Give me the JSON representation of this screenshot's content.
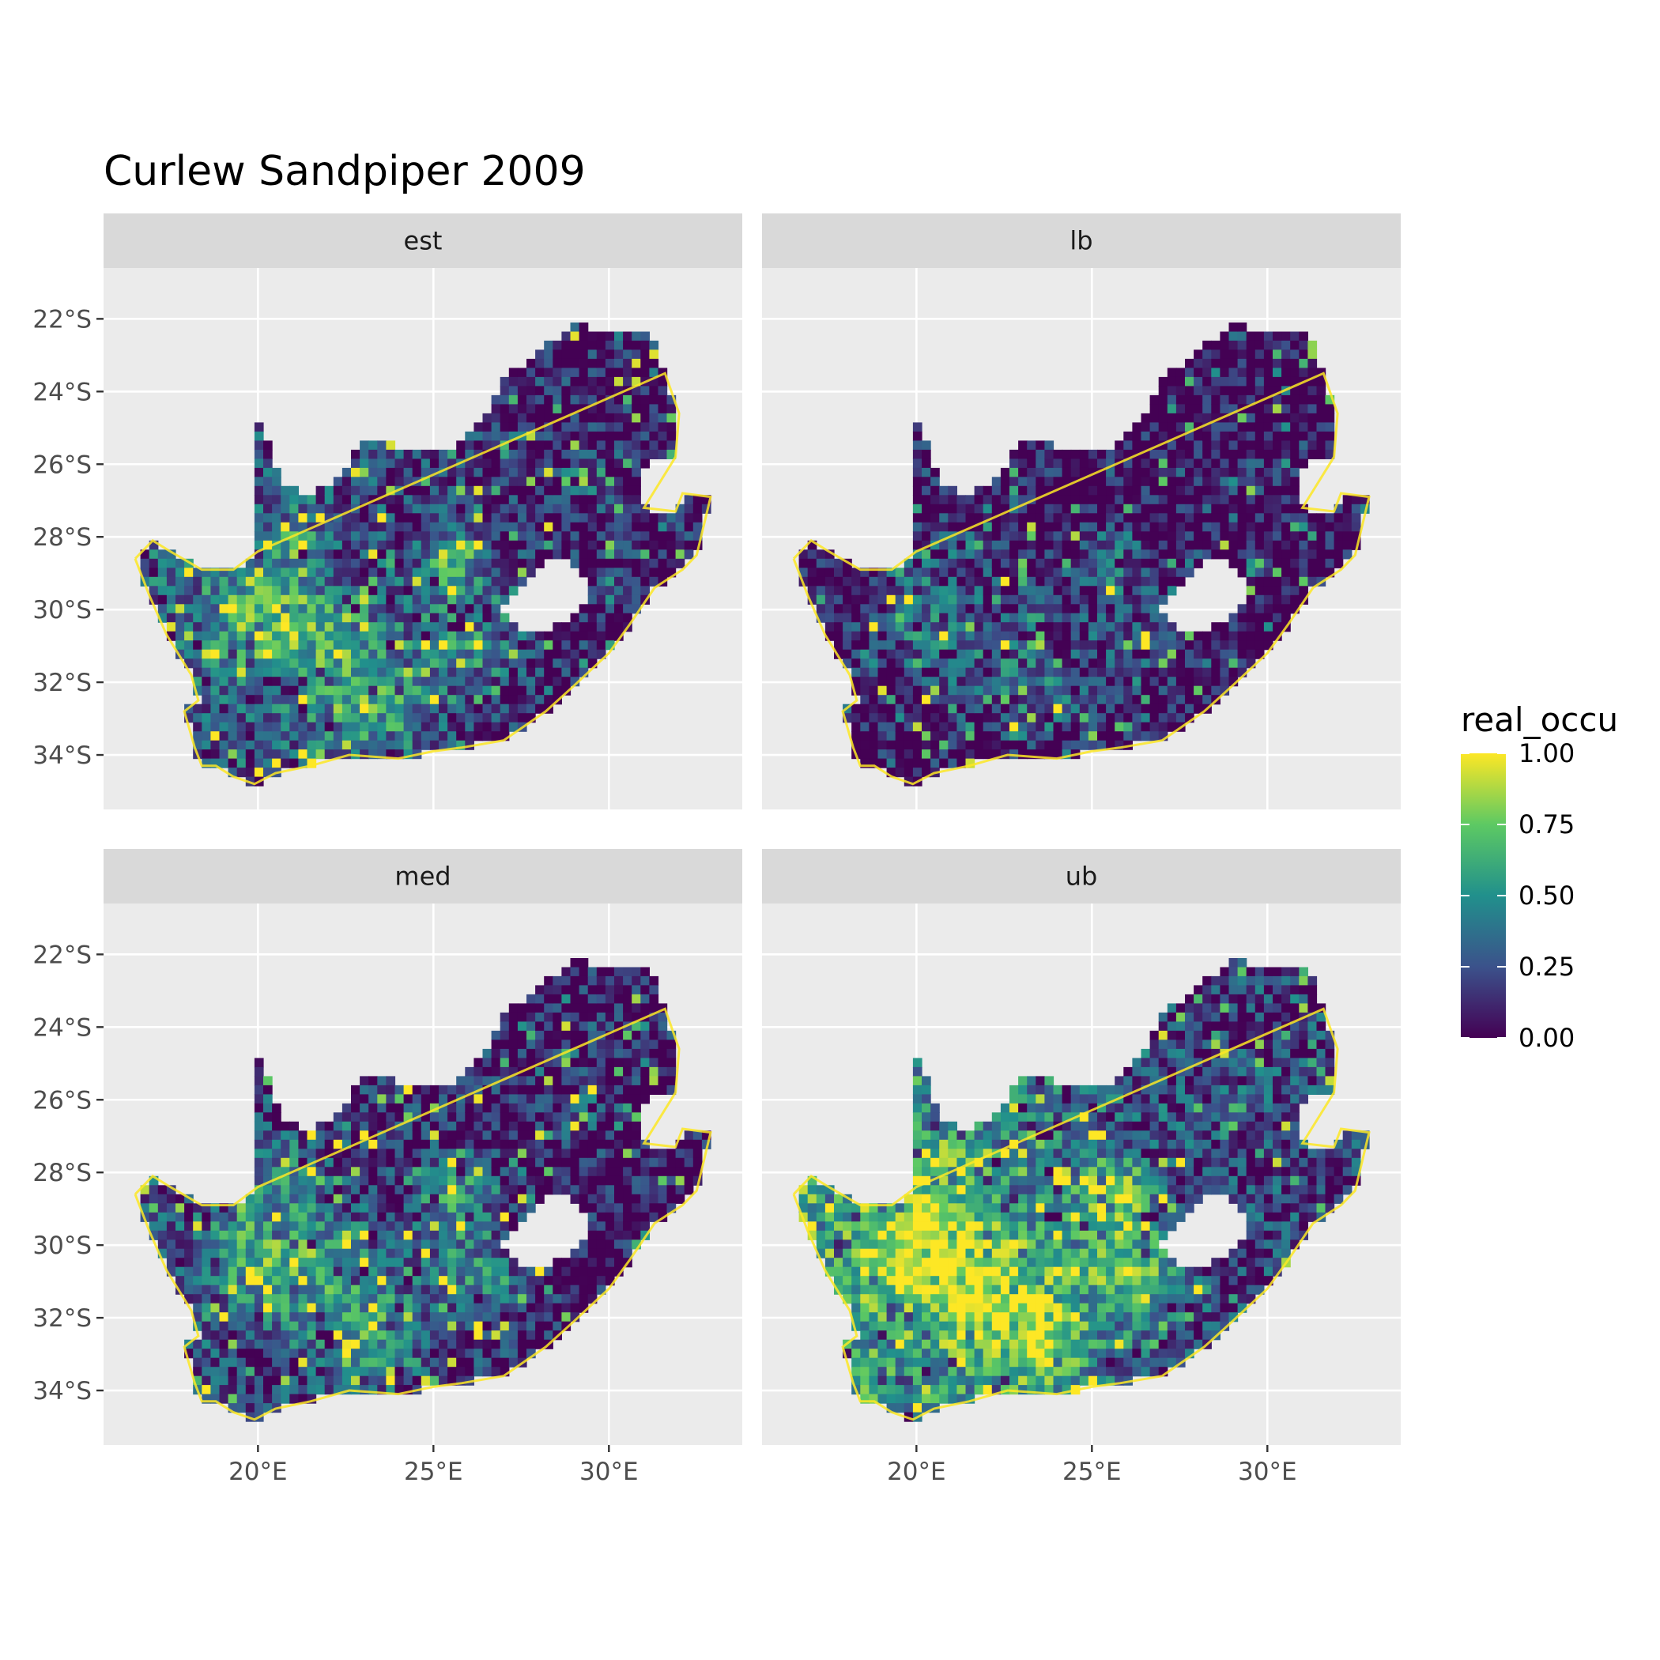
{
  "chart_data": {
    "type": "heatmap",
    "title": "Curlew Sandpiper 2009",
    "xlabel": "",
    "ylabel": "",
    "x_axis": {
      "unit": "degrees longitude",
      "ticks": [
        20,
        25,
        30
      ],
      "tick_labels": [
        "20°E",
        "25°E",
        "30°E"
      ],
      "range": [
        15.6,
        33.8
      ]
    },
    "y_axis": {
      "unit": "degrees latitude",
      "ticks": [
        -22,
        -24,
        -26,
        -28,
        -30,
        -32,
        -34
      ],
      "tick_labels": [
        "22°S",
        "24°S",
        "26°S",
        "28°S",
        "30°S",
        "32°S",
        "34°S"
      ],
      "range": [
        -35.5,
        -20.6
      ]
    },
    "grid": true,
    "legend": {
      "title": "real_occu",
      "placement": "right",
      "scale": "viridis",
      "range": [
        0,
        1
      ],
      "ticks": [
        0,
        0.25,
        0.5,
        0.75,
        1
      ],
      "tick_labels": [
        "0.00",
        "0.25",
        "0.50",
        "0.75",
        "1.00"
      ],
      "colors": [
        "#440154",
        "#3b528b",
        "#21908c",
        "#5dc963",
        "#fde725"
      ]
    },
    "facets": [
      {
        "label": "est",
        "base_level": 0.25,
        "hotspot_level": 0.75
      },
      {
        "label": "lb",
        "base_level": 0.05,
        "hotspot_level": 0.55
      },
      {
        "label": "med",
        "base_level": 0.2,
        "hotspot_level": 0.72
      },
      {
        "label": "ub",
        "base_level": 0.5,
        "hotspot_level": 0.92
      }
    ]
  },
  "colors": {
    "panel_background": "#ebebeb",
    "grid_line": "#ffffff",
    "strip_background": "#d9d9d9",
    "coastline_highlight": "#fde725"
  }
}
